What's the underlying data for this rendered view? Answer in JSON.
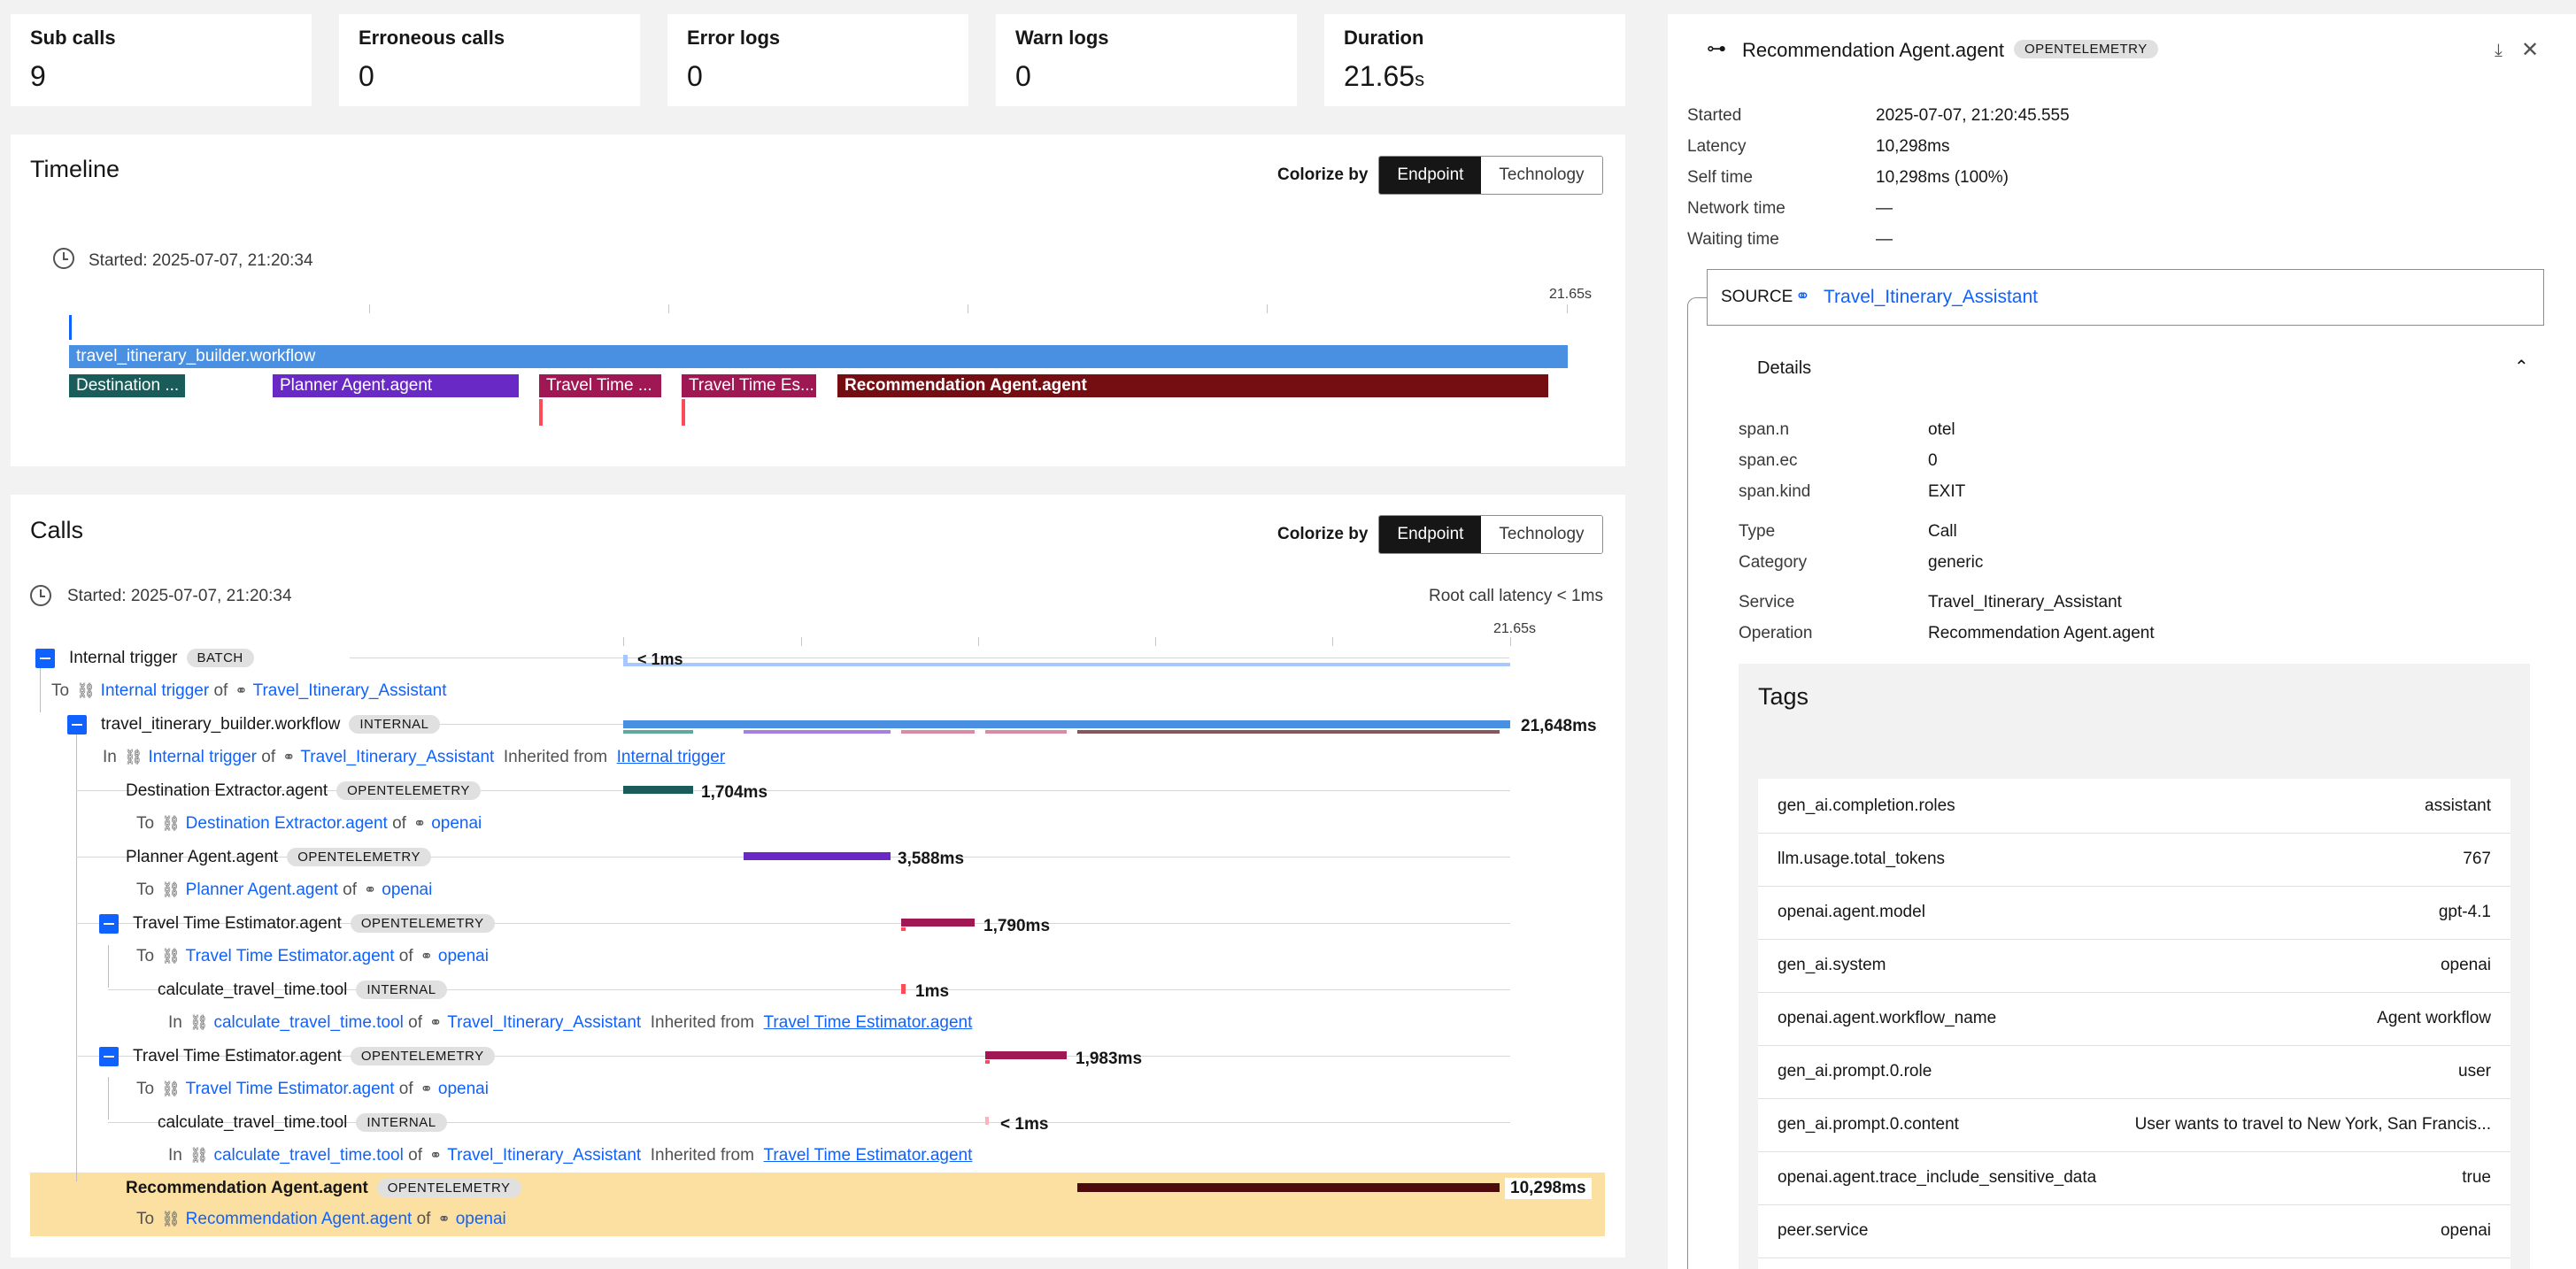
{
  "summary": {
    "sub_calls": {
      "label": "Sub calls",
      "value": "9"
    },
    "erroneous_calls": {
      "label": "Erroneous calls",
      "value": "0"
    },
    "error_logs": {
      "label": "Error logs",
      "value": "0"
    },
    "warn_logs": {
      "label": "Warn logs",
      "value": "0"
    },
    "duration": {
      "label": "Duration",
      "value": "21.65",
      "unit": "s"
    }
  },
  "timeline": {
    "title": "Timeline",
    "colorize_label": "Colorize by",
    "colorize_options": [
      "Endpoint",
      "Technology"
    ],
    "started": "Started: 2025-07-07, 21:20:34",
    "end_label": "21.65s",
    "bars": [
      {
        "label": "travel_itinerary_builder.workflow",
        "color": "#4a90e2"
      },
      {
        "label": "Destination ...",
        "color": "#1a5c5a"
      },
      {
        "label": "Planner Agent.agent",
        "color": "#6929c4"
      },
      {
        "label": "Travel Time ...",
        "color": "#9f1853"
      },
      {
        "label": "Travel Time Es...",
        "color": "#9f1853"
      },
      {
        "label": "Recommendation Agent.agent",
        "color": "#750e13"
      }
    ]
  },
  "calls": {
    "title": "Calls",
    "colorize_label": "Colorize by",
    "colorize_options": [
      "Endpoint",
      "Technology"
    ],
    "started": "Started: 2025-07-07, 21:20:34",
    "root_latency": "Root call latency < 1ms",
    "axis_end": "21.65s",
    "common": {
      "to": "To",
      "in": "In",
      "of": "of",
      "inherited": "Inherited from"
    },
    "rows": [
      {
        "name": "Internal trigger",
        "badge": "BATCH",
        "sub_link": "Internal trigger",
        "sub_service": "Travel_Itinerary_Assistant",
        "duration": "< 1ms"
      },
      {
        "name": "travel_itinerary_builder.workflow",
        "badge": "INTERNAL",
        "sub_link": "Internal trigger",
        "sub_service": "Travel_Itinerary_Assistant",
        "sub_inherited": "Internal trigger",
        "duration": "21,648ms"
      },
      {
        "name": "Destination Extractor.agent",
        "badge": "OPENTELEMETRY",
        "sub_link": "Destination Extractor.agent",
        "sub_service": "openai",
        "duration": "1,704ms"
      },
      {
        "name": "Planner Agent.agent",
        "badge": "OPENTELEMETRY",
        "sub_link": "Planner Agent.agent",
        "sub_service": "openai",
        "duration": "3,588ms"
      },
      {
        "name": "Travel Time Estimator.agent",
        "badge": "OPENTELEMETRY",
        "sub_link": "Travel Time Estimator.agent",
        "sub_service": "openai",
        "duration": "1,790ms"
      },
      {
        "name": "calculate_travel_time.tool",
        "badge": "INTERNAL",
        "sub_link": "calculate_travel_time.tool",
        "sub_service": "Travel_Itinerary_Assistant",
        "sub_inherited": "Travel Time Estimator.agent",
        "duration": "1ms"
      },
      {
        "name": "Travel Time Estimator.agent",
        "badge": "OPENTELEMETRY",
        "sub_link": "Travel Time Estimator.agent",
        "sub_service": "openai",
        "duration": "1,983ms"
      },
      {
        "name": "calculate_travel_time.tool",
        "badge": "INTERNAL",
        "sub_link": "calculate_travel_time.tool",
        "sub_service": "Travel_Itinerary_Assistant",
        "sub_inherited": "Travel Time Estimator.agent",
        "duration": "< 1ms"
      },
      {
        "name": "Recommendation Agent.agent",
        "badge": "OPENTELEMETRY",
        "sub_link": "Recommendation Agent.agent",
        "sub_service": "openai",
        "duration": "10,298ms"
      }
    ]
  },
  "detail": {
    "title": "Recommendation Agent.agent",
    "badge": "OPENTELEMETRY",
    "kv": [
      {
        "k": "Started",
        "v": "2025-07-07, 21:20:45.555"
      },
      {
        "k": "Latency",
        "v": "10,298ms"
      },
      {
        "k": "Self time",
        "v": "10,298ms (100%)"
      },
      {
        "k": "Network time",
        "v": "—"
      },
      {
        "k": "Waiting time",
        "v": "—"
      }
    ],
    "source_label": "SOURCE",
    "source_value": "Travel_Itinerary_Assistant",
    "details_label": "Details",
    "details": [
      {
        "k": "span.n",
        "v": "otel"
      },
      {
        "k": "span.ec",
        "v": "0"
      },
      {
        "k": "span.kind",
        "v": "EXIT"
      },
      {
        "k": "Type",
        "v": "Call"
      },
      {
        "k": "Category",
        "v": "generic"
      },
      {
        "k": "Service",
        "v": "Travel_Itinerary_Assistant"
      },
      {
        "k": "Operation",
        "v": "Recommendation Agent.agent"
      }
    ],
    "tags_title": "Tags",
    "tags": [
      {
        "k": "gen_ai.completion.roles",
        "v": "assistant"
      },
      {
        "k": "llm.usage.total_tokens",
        "v": "767"
      },
      {
        "k": "openai.agent.model",
        "v": "gpt-4.1"
      },
      {
        "k": "gen_ai.system",
        "v": "openai"
      },
      {
        "k": "openai.agent.workflow_name",
        "v": "Agent workflow"
      },
      {
        "k": "gen_ai.prompt.0.role",
        "v": "user"
      },
      {
        "k": "gen_ai.prompt.0.content",
        "v": "User wants to travel to New York, San Francis..."
      },
      {
        "k": "openai.agent.trace_include_sensitive_data",
        "v": "true"
      },
      {
        "k": "peer.service",
        "v": "openai"
      }
    ]
  }
}
